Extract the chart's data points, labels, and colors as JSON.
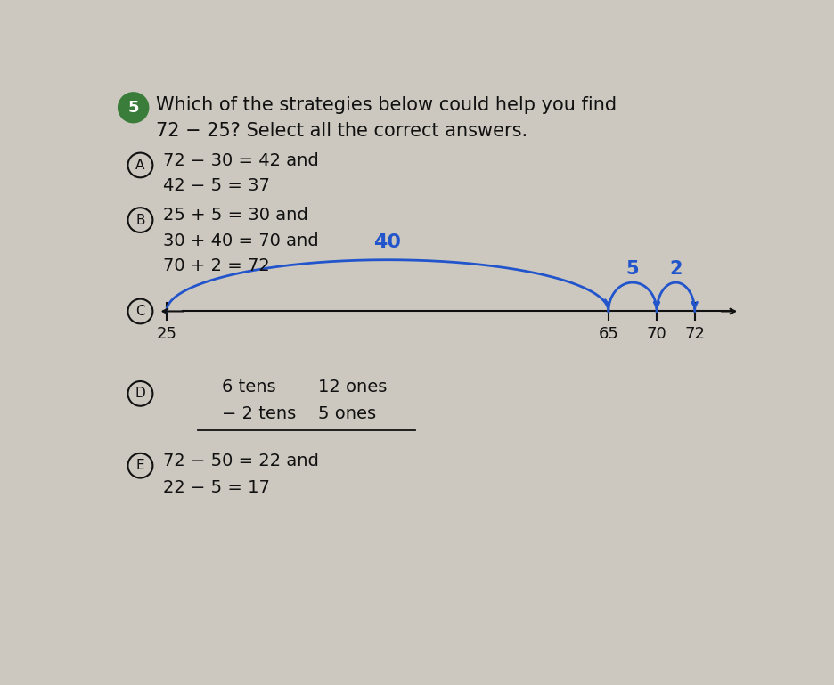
{
  "background_color": "#ccc8bf",
  "title_number_bg": "#3a7d3a",
  "title_fs": 15,
  "option_fs": 14,
  "blue_color": "#2255cc",
  "black": "#111111",
  "dark_gray": "#333333",
  "options_text": {
    "A_line1": "72 − 30 = 42 and",
    "A_line2": "42 − 5 = 37",
    "B_line1": "25 + 5 = 30 and",
    "B_line2": "30 + 40 = 70 and",
    "B_line3": "70 + 2 = 72",
    "D_row1_c1": "6 tens",
    "D_row1_c2": "12 ones",
    "D_row2_c1": "− 2 tens",
    "D_row2_c2": "5 ones",
    "E_line1": "72 − 50 = 22 and",
    "E_line2": "22 − 5 = 17"
  },
  "nl_label_25": "25",
  "nl_label_65": "65",
  "nl_label_70": "70",
  "nl_label_72": "72",
  "nl_arc_big": "40",
  "nl_arc_s1": "5",
  "nl_arc_s2": "2"
}
